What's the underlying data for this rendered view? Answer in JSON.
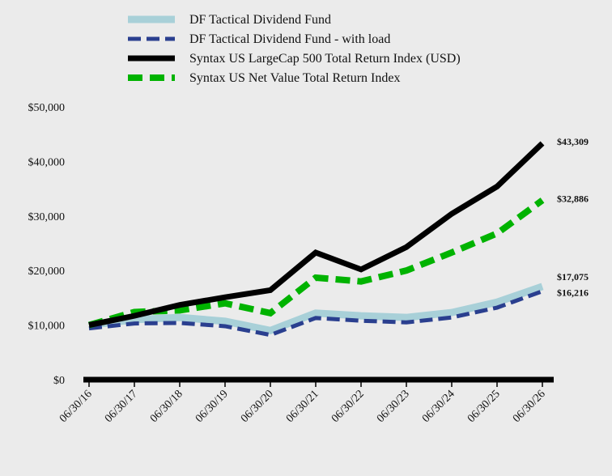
{
  "chart_data": {
    "type": "line",
    "title": "",
    "xlabel": "",
    "ylabel": "",
    "categories": [
      "06/30/16",
      "06/30/17",
      "06/30/18",
      "06/30/19",
      "06/30/20",
      "06/30/21",
      "06/30/22",
      "06/30/23",
      "06/30/24",
      "06/30/25",
      "06/30/26"
    ],
    "ylim": [
      0,
      50000
    ],
    "yticks": [
      0,
      10000,
      20000,
      30000,
      40000,
      50000
    ],
    "ytick_labels": [
      "$0",
      "$10,000",
      "$20,000",
      "$30,000",
      "$40,000",
      "$50,000"
    ],
    "grid": false,
    "legend_position": "top-left",
    "series": [
      {
        "name": "DF Tactical Dividend Fund",
        "color": "#a8d0d8",
        "style": "solid",
        "values": [
          10000,
          11000,
          11400,
          10700,
          9000,
          12200,
          11700,
          11400,
          12300,
          14200,
          17075
        ],
        "end_label": "$17,075"
      },
      {
        "name": "DF Tactical Dividend Fund - with load",
        "color": "#2a3f8f",
        "style": "dashed",
        "values": [
          9400,
          10300,
          10400,
          9800,
          8200,
          11300,
          10800,
          10500,
          11400,
          13200,
          16216
        ],
        "end_label": "$16,216"
      },
      {
        "name": "Syntax US LargeCap 500 Total Return Index (USD)",
        "color": "#000000",
        "style": "solid",
        "values": [
          10000,
          11700,
          13700,
          15100,
          16400,
          23300,
          20200,
          24300,
          30400,
          35400,
          43309
        ],
        "end_label": "$43,309"
      },
      {
        "name": "Syntax US Net Value Total Return Index",
        "color": "#00b300",
        "style": "dashed",
        "values": [
          10000,
          12400,
          12700,
          14000,
          12200,
          18700,
          18000,
          20000,
          23300,
          26800,
          32886
        ],
        "end_label": "$32,886"
      }
    ]
  }
}
